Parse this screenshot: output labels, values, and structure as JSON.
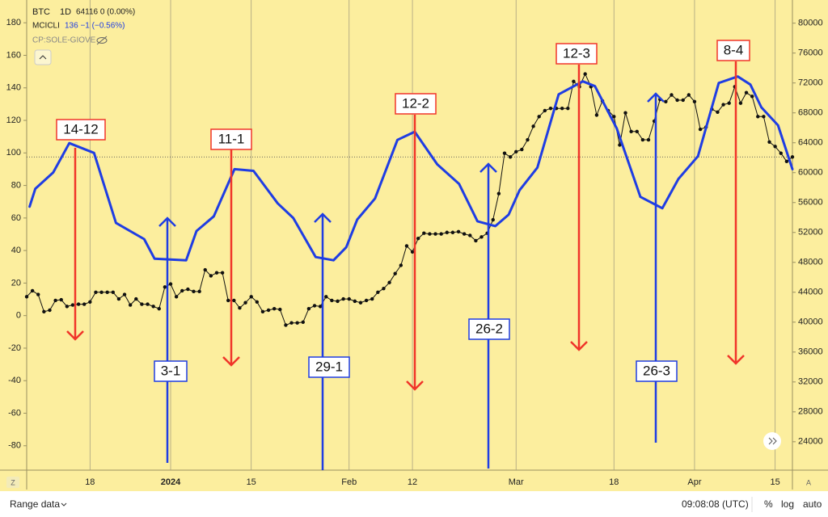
{
  "chart_data": {
    "type": "line",
    "header": {
      "interval": "1D",
      "symbol_values": "64116  0 (0.00%)",
      "indicator_values": "136  −1 (−0.56%)",
      "study": "CP:SOLE-GIOVE"
    },
    "x": [
      1,
      2,
      3,
      4,
      5,
      6,
      7,
      8,
      9,
      10,
      11,
      12,
      13,
      14,
      15,
      16,
      17,
      18,
      19,
      20,
      21,
      22,
      23,
      24,
      25,
      26,
      27,
      28,
      29,
      30,
      31,
      32,
      33,
      34,
      35,
      36,
      37,
      38,
      39,
      40,
      41,
      42,
      43,
      44,
      45,
      46,
      47,
      48,
      49,
      50,
      51,
      52,
      53,
      54,
      55,
      56,
      57,
      58,
      59,
      60,
      61,
      62,
      63,
      64,
      65,
      66,
      67,
      68,
      69,
      70,
      71,
      72,
      73,
      74,
      75,
      76,
      77,
      78,
      79,
      80,
      81,
      82,
      83,
      84,
      85,
      86,
      87,
      88,
      89,
      90,
      91,
      92,
      93,
      94,
      95,
      96,
      97,
      98,
      99,
      100,
      101,
      102,
      103,
      104,
      105,
      106,
      107,
      108,
      109,
      110,
      111,
      112,
      113,
      114,
      115,
      116,
      117,
      118,
      119,
      120,
      121,
      122,
      123,
      124,
      125,
      126,
      127,
      128,
      129,
      130,
      131,
      132,
      133,
      134
    ],
    "series": [
      {
        "name": "BTC",
        "color": "#111111",
        "axis": "y2",
        "values": [
          43400,
          44200,
          43700,
          41400,
          41600,
          42900,
          43000,
          42100,
          42300,
          42400,
          42400,
          42700,
          44000,
          44000,
          44000,
          44000,
          43100,
          43700,
          42300,
          43100,
          42400,
          42400,
          42100,
          41800,
          44700,
          45100,
          43400,
          44200,
          44400,
          44100,
          44100,
          47000,
          46200,
          46600,
          46600,
          42900,
          42900,
          41900,
          42600,
          43400,
          42700,
          41400,
          41600,
          41800,
          41700,
          39600,
          39900,
          39900,
          40000,
          41800,
          42200,
          42100,
          43400,
          42900,
          42800,
          43100,
          43100,
          42800,
          42600,
          42900,
          43100,
          44000,
          44500,
          45300,
          46500,
          47600,
          50200,
          49400,
          51200,
          51900,
          51800,
          51800,
          51800,
          52000,
          52000,
          52100,
          51800,
          51600,
          50900,
          51400,
          51900,
          53700,
          57200,
          62600,
          62100,
          62800,
          63100,
          64400,
          66200,
          67500,
          68300,
          68600,
          68600,
          68600,
          68600,
          72200,
          71500,
          73200,
          71500,
          67700,
          69600,
          68300,
          67500,
          63700,
          68000,
          65500,
          65500,
          64400,
          64400,
          66900,
          69800,
          69500,
          70400,
          69700,
          69700,
          70400,
          69500,
          65800,
          66100,
          68500,
          68100,
          69100,
          69300,
          71500,
          69300,
          70700,
          70200,
          67500,
          67500,
          64100,
          63500,
          62600,
          61500,
          62100
        ]
      },
      {
        "name": "MCICLI",
        "color": "#1f3de3",
        "x": [
          1.5,
          2.5,
          5.6,
          8.4,
          12.7,
          16.5,
          21.4,
          23.2,
          28.7,
          30.5,
          33.5,
          37.1,
          40.4,
          44.6,
          47.3,
          51.2,
          54.3,
          56.5,
          58.4,
          61.5,
          65.4,
          68.4,
          72.3,
          76.1,
          79.3,
          82.4,
          84.7,
          86.6,
          89.7,
          93.4,
          97.6,
          99.7,
          103.5,
          107.6,
          111.4,
          114.2,
          117.6,
          121.2,
          124.5,
          126.7,
          128.6,
          131.5,
          134
        ],
        "values": [
          67,
          78,
          88,
          106,
          100,
          57,
          47,
          35,
          34,
          52,
          61,
          90,
          89,
          69,
          60,
          36,
          34,
          42,
          59,
          72,
          108,
          113,
          93,
          81,
          58,
          55,
          62,
          77,
          91,
          136,
          144,
          141,
          115,
          73,
          66,
          84,
          98,
          143,
          147,
          142,
          128,
          117,
          90
        ]
      }
    ],
    "xlim": [
      1,
      134
    ],
    "xticks": [
      {
        "value": 12,
        "label": "18"
      },
      {
        "value": 26,
        "label": "2024"
      },
      {
        "value": 40,
        "label": "15"
      },
      {
        "value": 57,
        "label": "Feb"
      },
      {
        "value": 68,
        "label": "12"
      },
      {
        "value": 86,
        "label": "Mar"
      },
      {
        "value": 103,
        "label": "18"
      },
      {
        "value": 117,
        "label": "Apr"
      },
      {
        "value": 131,
        "label": "15"
      }
    ],
    "ylim": [
      -95,
      194
    ],
    "yticks": [
      -80,
      -60,
      -40,
      -20,
      0,
      20,
      40,
      60,
      80,
      100,
      120,
      140,
      160,
      180
    ],
    "y2lim": [
      20200,
      83100
    ],
    "y2ticks": [
      24000,
      28000,
      32000,
      36000,
      40000,
      44000,
      48000,
      52000,
      56000,
      60000,
      64000,
      68000,
      72000,
      76000,
      80000
    ],
    "grid": true,
    "annotations": [
      {
        "text": "14-12",
        "color": "#f0352a"
      },
      {
        "text": "11-1",
        "color": "#f0352a"
      },
      {
        "text": "12-2",
        "color": "#f0352a"
      },
      {
        "text": "12-3",
        "color": "#f0352a"
      },
      {
        "text": "8-4",
        "color": "#f0352a"
      },
      {
        "text": "3-1",
        "color": "#1f3de3"
      },
      {
        "text": "29-1",
        "color": "#1f3de3"
      },
      {
        "text": "26-2",
        "color": "#1f3de3"
      },
      {
        "text": "26-3",
        "color": "#1f3de3"
      }
    ],
    "footer": {
      "corner_left": "Z",
      "corner_right": "A",
      "range": "Range data",
      "time": "09:08:08 (UTC)",
      "percent": "%",
      "log": "log",
      "auto": "auto"
    }
  }
}
